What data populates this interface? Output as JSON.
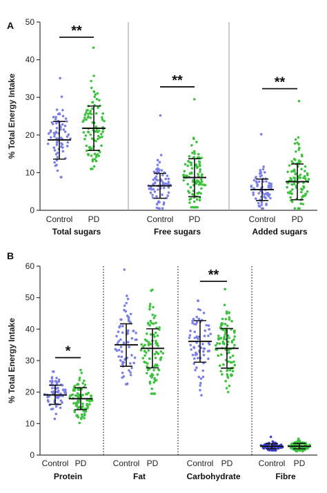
{
  "chart_data": [
    {
      "panel": "A",
      "type": "scatter",
      "ylabel": "% Total Energy Intake",
      "ylim": [
        0,
        50
      ],
      "yticks": [
        0,
        10,
        20,
        30,
        40,
        50
      ],
      "separator_style": "solid",
      "groups": [
        {
          "name": "Total sugars",
          "significance": "**",
          "series": [
            {
              "name": "Control",
              "color": "#7b7fe8",
              "mean": 18.7,
              "sd_low": 13.6,
              "sd_high": 23.6,
              "min": 8.8,
              "max": 35.1,
              "n": 70
            },
            {
              "name": "PD",
              "color": "#3cc23c",
              "mean": 21.8,
              "sd_low": 15.9,
              "sd_high": 27.7,
              "min": 11.0,
              "max": 43.2,
              "n": 95
            }
          ]
        },
        {
          "name": "Free sugars",
          "significance": "**",
          "series": [
            {
              "name": "Control",
              "color": "#7b7fe8",
              "mean": 6.5,
              "sd_low": 3.2,
              "sd_high": 9.8,
              "min": 0.5,
              "max": 25.2,
              "n": 70
            },
            {
              "name": "PD",
              "color": "#3cc23c",
              "mean": 8.7,
              "sd_low": 3.6,
              "sd_high": 13.7,
              "min": 0.8,
              "max": 29.5,
              "n": 95
            }
          ]
        },
        {
          "name": "Added sugars",
          "significance": "**",
          "series": [
            {
              "name": "Control",
              "color": "#7b7fe8",
              "mean": 5.5,
              "sd_low": 2.6,
              "sd_high": 8.3,
              "min": 0.5,
              "max": 20.2,
              "n": 70
            },
            {
              "name": "PD",
              "color": "#3cc23c",
              "mean": 7.6,
              "sd_low": 2.8,
              "sd_high": 12.3,
              "min": 0.5,
              "max": 29.0,
              "n": 95
            }
          ]
        }
      ]
    },
    {
      "panel": "B",
      "type": "scatter",
      "ylabel": "% Total Energy Intake",
      "ylim": [
        0,
        60
      ],
      "yticks": [
        0,
        10,
        20,
        30,
        40,
        50,
        60
      ],
      "separator_style": "dotted",
      "groups": [
        {
          "name": "Protein",
          "significance": "*",
          "series": [
            {
              "name": "Control",
              "color": "#7b7fe8",
              "mean": 19.1,
              "sd_low": 16.1,
              "sd_high": 22.2,
              "min": 11.5,
              "max": 26.5,
              "n": 70
            },
            {
              "name": "PD",
              "color": "#3cc23c",
              "mean": 17.9,
              "sd_low": 14.4,
              "sd_high": 21.4,
              "min": 10.2,
              "max": 27.0,
              "n": 95
            }
          ]
        },
        {
          "name": "Fat",
          "significance": "",
          "series": [
            {
              "name": "Control",
              "color": "#7b7fe8",
              "mean": 35.0,
              "sd_low": 28.2,
              "sd_high": 41.7,
              "min": 22.5,
              "max": 58.9,
              "n": 70
            },
            {
              "name": "PD",
              "color": "#3cc23c",
              "mean": 33.9,
              "sd_low": 27.7,
              "sd_high": 40.1,
              "min": 19.5,
              "max": 52.5,
              "n": 95
            }
          ]
        },
        {
          "name": "Carbohydrate",
          "significance": "**",
          "series": [
            {
              "name": "Control",
              "color": "#7b7fe8",
              "mean": 36.1,
              "sd_low": 29.5,
              "sd_high": 42.7,
              "min": 19.0,
              "max": 49.0,
              "n": 70
            },
            {
              "name": "PD",
              "color": "#3cc23c",
              "mean": 33.9,
              "sd_low": 27.6,
              "sd_high": 40.2,
              "min": 20.0,
              "max": 52.7,
              "n": 95
            }
          ]
        },
        {
          "name": "Fibre",
          "significance": "",
          "series": [
            {
              "name": "Control",
              "color": "#3a3fd0",
              "mean": 2.8,
              "sd_low": 2.0,
              "sd_high": 3.6,
              "min": 1.5,
              "max": 5.8,
              "n": 70
            },
            {
              "name": "PD",
              "color": "#3cc23c",
              "mean": 2.8,
              "sd_low": 2.0,
              "sd_high": 3.7,
              "min": 1.2,
              "max": 5.2,
              "n": 95
            }
          ]
        }
      ]
    }
  ]
}
